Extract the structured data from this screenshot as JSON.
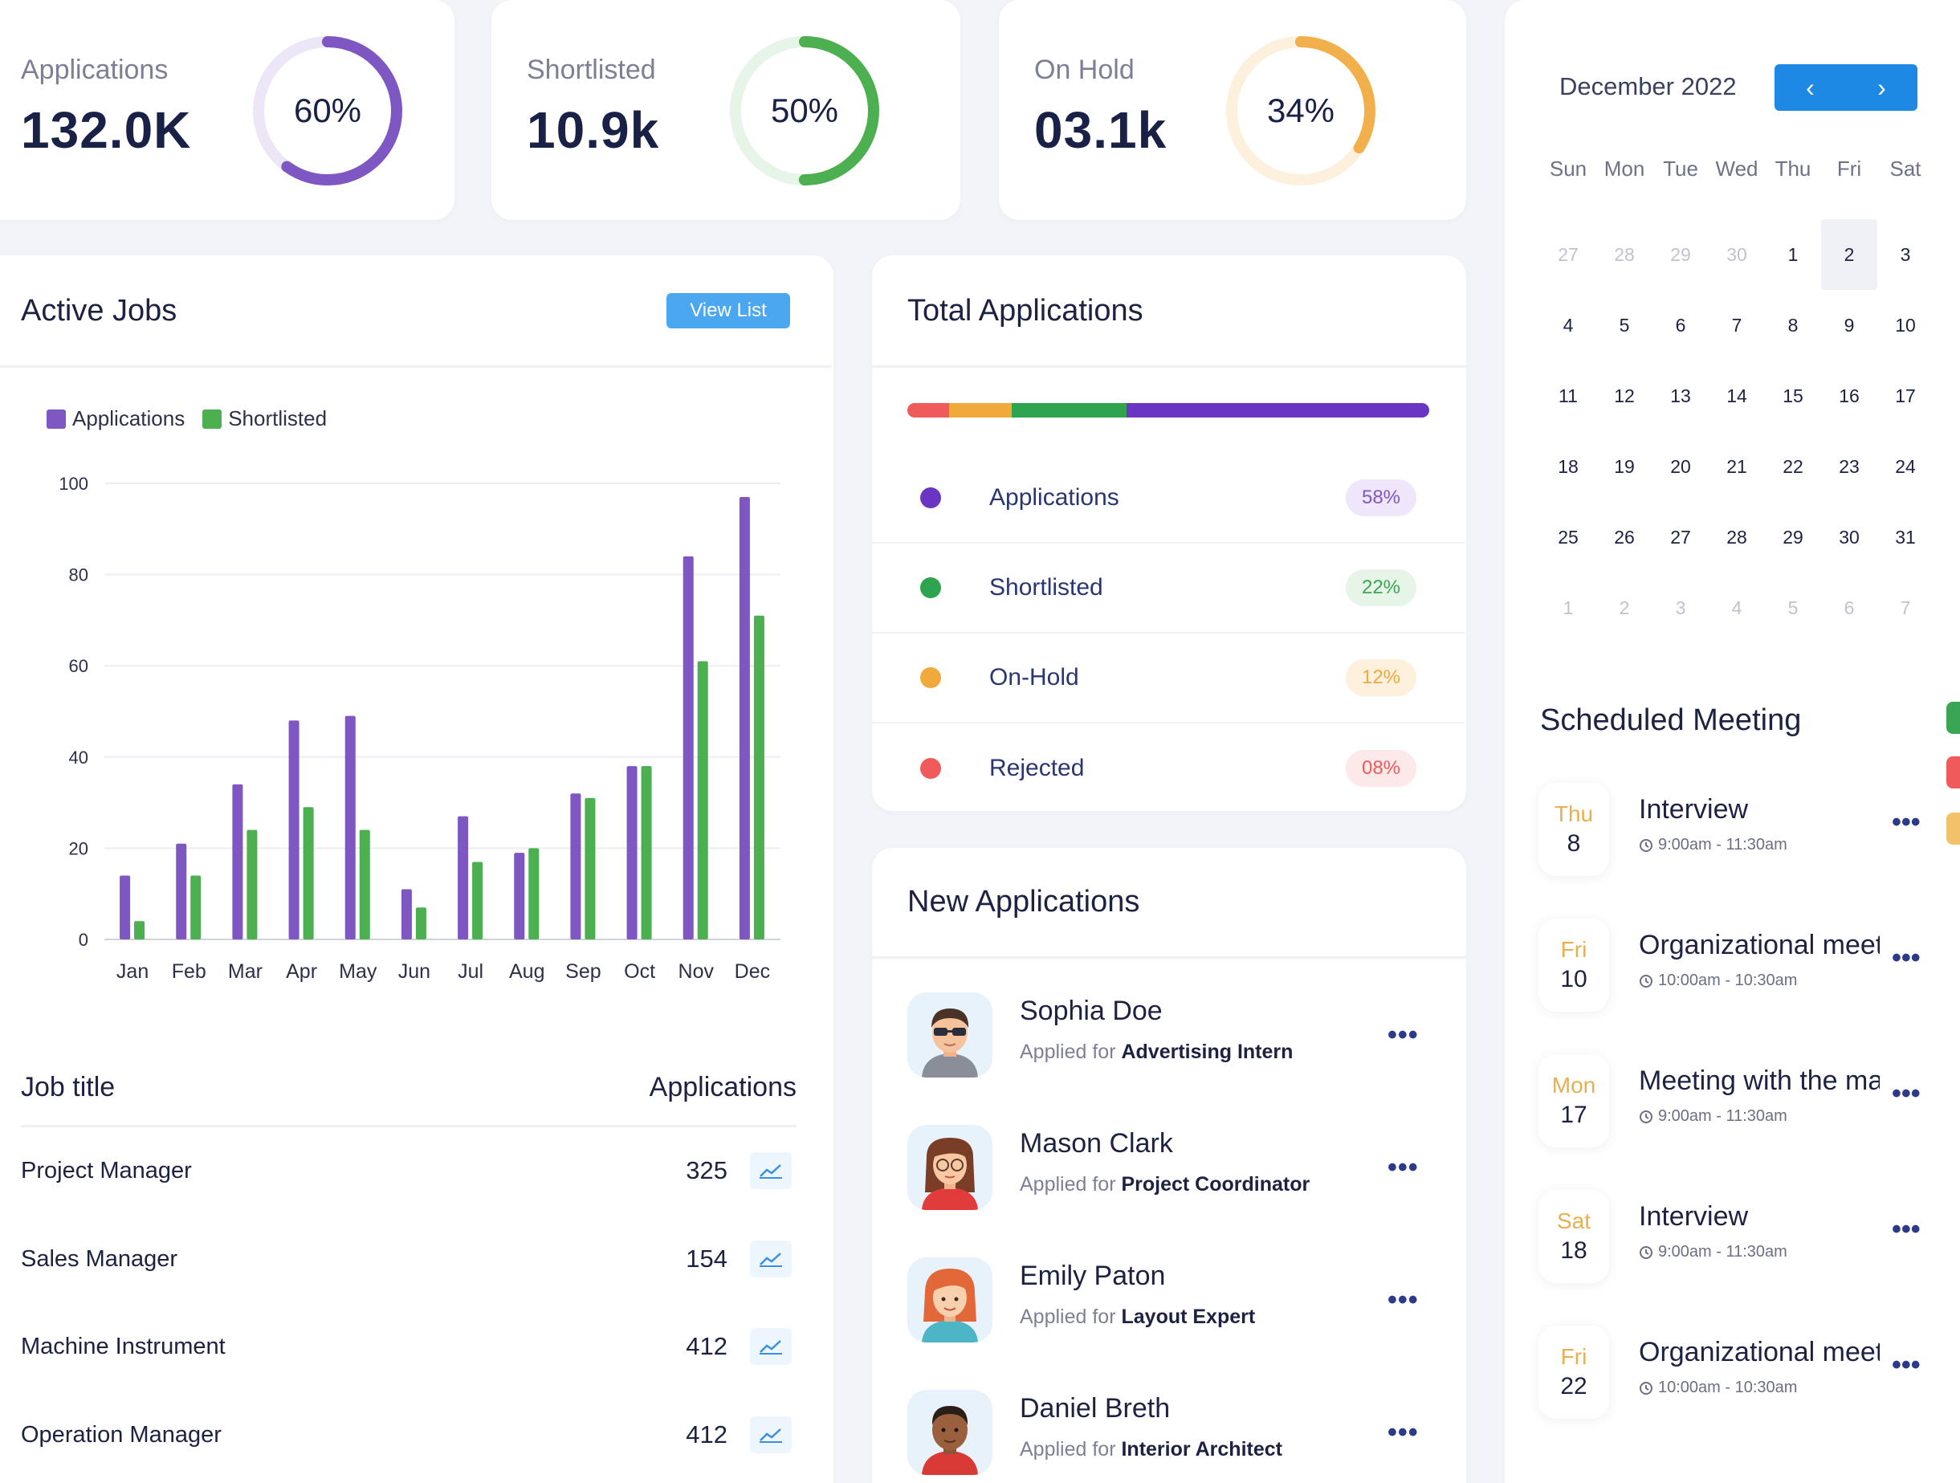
{
  "stats": [
    {
      "label": "Applications",
      "value": "132.0K",
      "percent_text": "60%",
      "percent": 60,
      "color": "#7e57c2",
      "track": "#ece6f7"
    },
    {
      "label": "Shortlisted",
      "value": "10.9k",
      "percent_text": "50%",
      "percent": 50,
      "color": "#4caf50",
      "track": "#e7f4e8"
    },
    {
      "label": "On Hold",
      "value": "03.1k",
      "percent_text": "34%",
      "percent": 34,
      "color": "#f2b04c",
      "track": "#fdf0dc"
    }
  ],
  "active_jobs": {
    "title": "Active Jobs",
    "view_list_label": "View List",
    "legend": [
      {
        "name": "Applications",
        "color": "#7e57c2"
      },
      {
        "name": "Shortlisted",
        "color": "#4caf50"
      }
    ],
    "table_headers": {
      "title": "Job title",
      "count": "Applications"
    },
    "jobs": [
      {
        "title": "Project Manager",
        "count": "325"
      },
      {
        "title": "Sales Manager",
        "count": "154"
      },
      {
        "title": "Machine Instrument",
        "count": "412"
      },
      {
        "title": "Operation Manager",
        "count": "412"
      }
    ]
  },
  "chart_data": {
    "type": "bar",
    "categories": [
      "Jan",
      "Feb",
      "Mar",
      "Apr",
      "May",
      "Jun",
      "Jul",
      "Aug",
      "Sep",
      "Oct",
      "Nov",
      "Dec"
    ],
    "series": [
      {
        "name": "Applications",
        "color": "#7e57c2",
        "values": [
          14,
          21,
          34,
          48,
          49,
          11,
          27,
          19,
          32,
          38,
          84,
          97
        ]
      },
      {
        "name": "Shortlisted",
        "color": "#4caf50",
        "values": [
          4,
          14,
          24,
          29,
          24,
          7,
          17,
          20,
          31,
          38,
          61,
          71
        ]
      }
    ],
    "yticks": [
      0,
      20,
      40,
      60,
      80,
      100
    ],
    "ylim": [
      0,
      100
    ],
    "grid": true,
    "legend_position": "top-left"
  },
  "total_applications": {
    "title": "Total Applications",
    "items": [
      {
        "label": "Applications",
        "percent_text": "58%",
        "percent": 58,
        "color": "#6a35c2",
        "pill_bg": "#efe6fb",
        "pill_color": "#7e57c2"
      },
      {
        "label": "Shortlisted",
        "percent_text": "22%",
        "percent": 22,
        "color": "#2ea44f",
        "pill_bg": "#e6f5e8",
        "pill_color": "#3aa655"
      },
      {
        "label": "On-Hold",
        "percent_text": "12%",
        "percent": 12,
        "color": "#f2a93b",
        "pill_bg": "#fdf1de",
        "pill_color": "#f0a93e"
      },
      {
        "label": "Rejected",
        "percent_text": "08%",
        "percent": 8,
        "color": "#f05a5b",
        "pill_bg": "#fde8ea",
        "pill_color": "#ef5a5f"
      }
    ]
  },
  "new_applications": {
    "title": "New Applications",
    "applied_prefix": "Applied for",
    "more_label": "•••",
    "people": [
      {
        "name": "Sophia Doe",
        "role": "Advertising Intern",
        "avatar": "man-sunglasses-avatar"
      },
      {
        "name": "Mason Clark",
        "role": "Project Coordinator",
        "avatar": "woman-glasses-avatar"
      },
      {
        "name": "Emily Paton",
        "role": "Layout Expert",
        "avatar": "woman-redhair-avatar"
      },
      {
        "name": "Daniel Breth",
        "role": "Interior Architect",
        "avatar": "man-dark-avatar"
      }
    ]
  },
  "calendar": {
    "month_label": "December 2022",
    "prev_icon": "‹",
    "next_icon": "›",
    "weekdays": [
      "Sun",
      "Mon",
      "Tue",
      "Wed",
      "Thu",
      "Fri",
      "Sat"
    ],
    "days": [
      {
        "n": "27",
        "muted": true
      },
      {
        "n": "28",
        "muted": true
      },
      {
        "n": "29",
        "muted": true
      },
      {
        "n": "30",
        "muted": true
      },
      {
        "n": "1"
      },
      {
        "n": "2",
        "selected": true
      },
      {
        "n": "3"
      },
      {
        "n": "4"
      },
      {
        "n": "5"
      },
      {
        "n": "6"
      },
      {
        "n": "7"
      },
      {
        "n": "8"
      },
      {
        "n": "9"
      },
      {
        "n": "10"
      },
      {
        "n": "11"
      },
      {
        "n": "12"
      },
      {
        "n": "13"
      },
      {
        "n": "14"
      },
      {
        "n": "15"
      },
      {
        "n": "16"
      },
      {
        "n": "17"
      },
      {
        "n": "18"
      },
      {
        "n": "19"
      },
      {
        "n": "20"
      },
      {
        "n": "21"
      },
      {
        "n": "22"
      },
      {
        "n": "23"
      },
      {
        "n": "24"
      },
      {
        "n": "25"
      },
      {
        "n": "26"
      },
      {
        "n": "27"
      },
      {
        "n": "28"
      },
      {
        "n": "29"
      },
      {
        "n": "30"
      },
      {
        "n": "31"
      },
      {
        "n": "1",
        "muted": true
      },
      {
        "n": "2",
        "muted": true
      },
      {
        "n": "3",
        "muted": true
      },
      {
        "n": "4",
        "muted": true
      },
      {
        "n": "5",
        "muted": true
      },
      {
        "n": "6",
        "muted": true
      },
      {
        "n": "7",
        "muted": true
      }
    ]
  },
  "scheduled_meeting": {
    "title": "Scheduled Meeting",
    "more_label": "•••",
    "meetings": [
      {
        "day": "Thu",
        "date": "8",
        "title": "Interview",
        "time": "9:00am - 11:30am"
      },
      {
        "day": "Fri",
        "date": "10",
        "title": "Organizational meeting",
        "time": "10:00am - 10:30am"
      },
      {
        "day": "Mon",
        "date": "17",
        "title": "Meeting with the manager",
        "time": "9:00am - 11:30am"
      },
      {
        "day": "Sat",
        "date": "18",
        "title": "Interview",
        "time": "9:00am - 11:30am"
      },
      {
        "day": "Fri",
        "date": "22",
        "title": "Organizational meeting",
        "time": "10:00am - 10:30am"
      }
    ]
  },
  "colors": {
    "accent": "#1e88e5",
    "view_list": "#4aa7f0",
    "text": "#1d2242"
  }
}
